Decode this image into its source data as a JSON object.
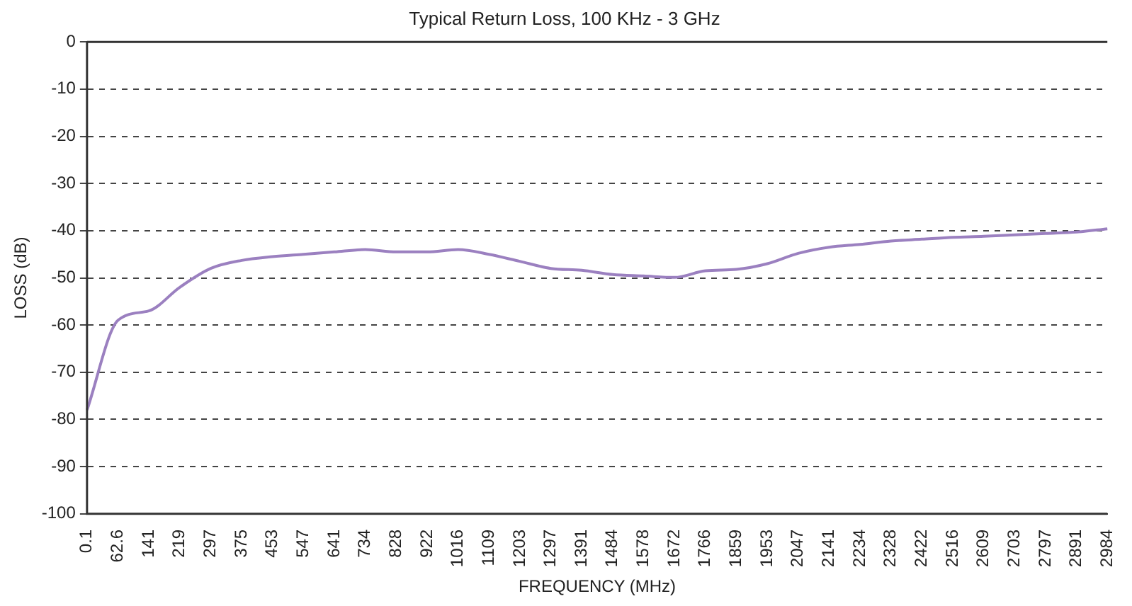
{
  "chart_data": {
    "type": "line",
    "title": "Typical Return Loss, 100 KHz - 3 GHz",
    "xlabel": "FREQUENCY (MHz)",
    "ylabel": "LOSS (dB)",
    "categories": [
      "0.1",
      "62.6",
      "141",
      "219",
      "297",
      "375",
      "453",
      "547",
      "641",
      "734",
      "828",
      "922",
      "1016",
      "1109",
      "1203",
      "1297",
      "1391",
      "1484",
      "1578",
      "1672",
      "1766",
      "1859",
      "1953",
      "2047",
      "2141",
      "2234",
      "2328",
      "2422",
      "2516",
      "2609",
      "2703",
      "2797",
      "2891",
      "2984"
    ],
    "series": [
      {
        "color": "#9b80c0",
        "values": [
          -78,
          -59,
          -57,
          -52,
          -48,
          -46.3,
          -45.5,
          -45,
          -44.5,
          -44,
          -44.5,
          -44.5,
          -44,
          -45,
          -46.5,
          -48,
          -48.4,
          -49.3,
          -49.6,
          -49.9,
          -48.5,
          -48.2,
          -47,
          -44.8,
          -43.5,
          -42.9,
          -42.2,
          -41.8,
          -41.4,
          -41.2,
          -40.9,
          -40.6,
          -40.3,
          -39.6
        ]
      }
    ],
    "ylim": [
      -100,
      0
    ],
    "yticks": [
      -100,
      -90,
      -80,
      -70,
      -60,
      -50,
      -40,
      -30,
      -20,
      -10,
      0
    ],
    "grid": "y",
    "legend": false,
    "marker": "none",
    "line_style": "solid"
  }
}
